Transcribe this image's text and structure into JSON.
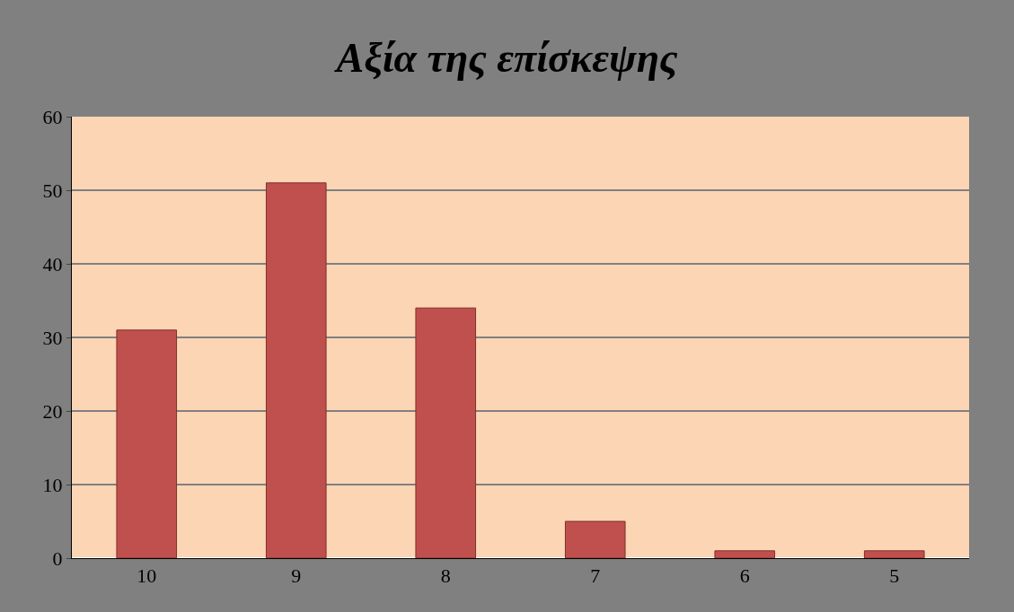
{
  "chart_data": {
    "type": "bar",
    "title": "Αξία της επίσκεψης",
    "categories": [
      "10",
      "9",
      "8",
      "7",
      "6",
      "5"
    ],
    "values": [
      31,
      51,
      34,
      5,
      1,
      1
    ],
    "color": "#c0504d",
    "ylim": [
      0,
      60
    ],
    "yticks": [
      0,
      10,
      20,
      30,
      40,
      50,
      60
    ],
    "grid": "y",
    "legend": false
  }
}
